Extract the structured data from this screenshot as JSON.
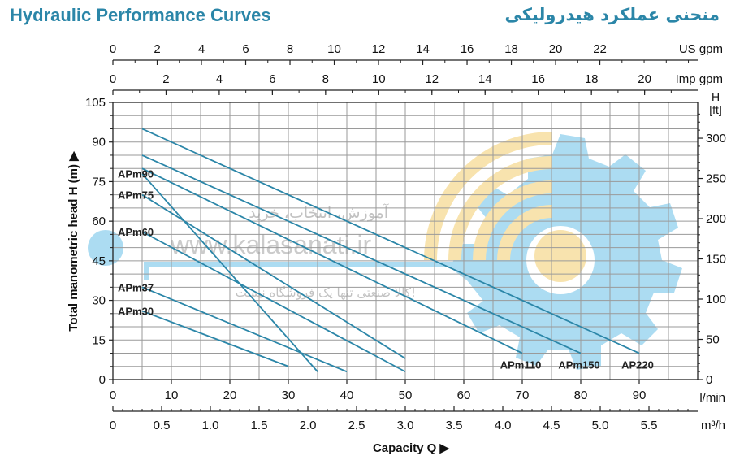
{
  "header": {
    "title_en": "Hydraulic Performance Curves",
    "title_fa": "منحنی عملکرد هیدرولیکی"
  },
  "colors": {
    "curve": "#2b86a8",
    "grid": "#9a9a9a",
    "title": "#2b86a8",
    "watermark_blue": "#9ed6f0",
    "watermark_yellow": "#f7dfa0"
  },
  "watermark": {
    "line1": "آموزش، انتخاب، خرید",
    "url": "www.kalasanati.ir",
    "line2": "کالا صنعتی تنها یک فروشگاه نیست!"
  },
  "chart_data": {
    "type": "line",
    "ylabel": "Total manometric head H (m)",
    "ylim": [
      0,
      105
    ],
    "y_ticks": [
      0,
      15,
      30,
      45,
      60,
      75,
      90,
      105
    ],
    "y_right": {
      "unit_top": "H",
      "unit_bottom": "[ft]",
      "ticks": [
        0,
        50,
        100,
        150,
        200,
        250,
        300
      ]
    },
    "xlim_lmin": [
      0,
      100
    ],
    "x_axes": {
      "us_gpm": {
        "unit": "US gpm",
        "ticks": [
          0,
          2,
          4,
          6,
          8,
          10,
          12,
          14,
          16,
          18,
          20,
          22
        ]
      },
      "imp_gpm": {
        "unit": "Imp gpm",
        "ticks": [
          0,
          2,
          4,
          6,
          8,
          10,
          12,
          14,
          16,
          18,
          20
        ]
      },
      "lmin": {
        "unit": "l/min",
        "ticks": [
          0,
          10,
          20,
          30,
          40,
          50,
          60,
          70,
          80,
          90
        ]
      },
      "m3h": {
        "unit": "m³/h",
        "ticks": [
          "0",
          "0.5",
          "1.0",
          "1.5",
          "2.0",
          "2.5",
          "3.0",
          "3.5",
          "4.0",
          "4.5",
          "5.0",
          "5.5"
        ]
      }
    },
    "xlabel": "Capacity Q",
    "series": [
      {
        "name": "APm90",
        "x": [
          5,
          35
        ],
        "y": [
          78,
          3
        ]
      },
      {
        "name": "APm75",
        "x": [
          5,
          50
        ],
        "y": [
          70,
          8
        ]
      },
      {
        "name": "APm60",
        "x": [
          5,
          50
        ],
        "y": [
          56,
          3
        ]
      },
      {
        "name": "APm37",
        "x": [
          5,
          40
        ],
        "y": [
          35,
          3
        ]
      },
      {
        "name": "APm30",
        "x": [
          5,
          30
        ],
        "y": [
          26,
          5
        ]
      },
      {
        "name": "APm110",
        "x": [
          5,
          70
        ],
        "y": [
          80,
          10
        ]
      },
      {
        "name": "APm150",
        "x": [
          5,
          80
        ],
        "y": [
          85,
          10
        ]
      },
      {
        "name": "AP220",
        "x": [
          5,
          90
        ],
        "y": [
          95,
          10
        ]
      }
    ],
    "series_labels": {
      "left": [
        "APm90",
        "APm75",
        "APm60",
        "APm37",
        "APm30"
      ],
      "bottom": [
        "APm110",
        "APm150",
        "AP220"
      ]
    }
  }
}
